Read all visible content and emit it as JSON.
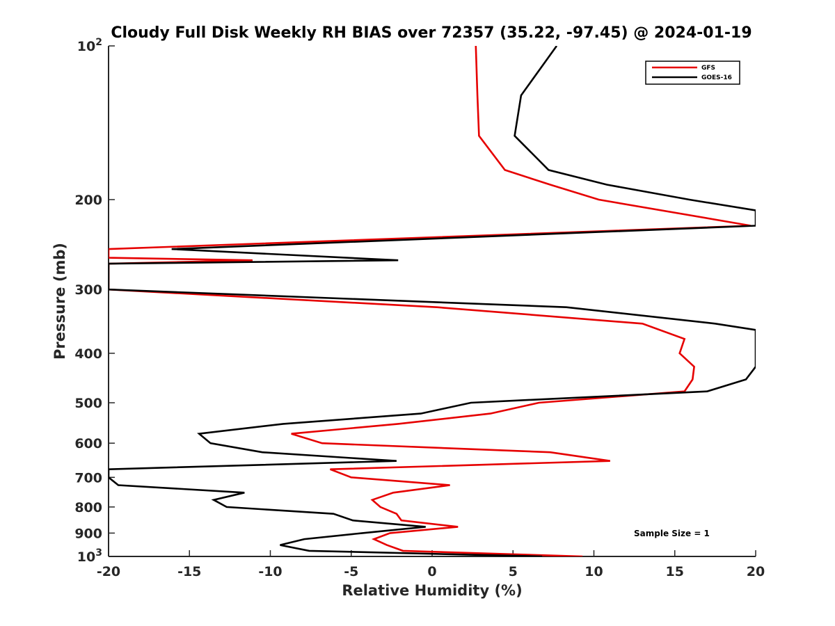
{
  "chart_data": {
    "type": "line",
    "title": "Cloudy Full Disk Weekly RH BIAS over 72357 (35.22, -97.45) @ 2024-01-19",
    "xlabel": "Relative Humidity (%)",
    "ylabel": "Pressure (mb)",
    "xlim": [
      -20,
      20
    ],
    "ylim": [
      100,
      1000
    ],
    "y_scale": "log",
    "y_reversed": true,
    "grid": false,
    "legend_position": "top-right",
    "x_ticks": [
      "-20",
      "-15",
      "-10",
      "-5",
      "0",
      "5",
      "10",
      "15",
      "20"
    ],
    "y_ticks": [
      {
        "value": 100,
        "base": "10",
        "exp": "2"
      },
      {
        "value": 200,
        "label": "200"
      },
      {
        "value": 300,
        "label": "300"
      },
      {
        "value": 400,
        "label": "400"
      },
      {
        "value": 500,
        "label": "500"
      },
      {
        "value": 600,
        "label": "600"
      },
      {
        "value": 700,
        "label": "700"
      },
      {
        "value": 800,
        "label": "800"
      },
      {
        "value": 900,
        "label": "900"
      },
      {
        "value": 1000,
        "base": "10",
        "exp": "3"
      }
    ],
    "series": [
      {
        "name": "GFS",
        "color": "#e60000",
        "points": [
          [
            2.7,
            100
          ],
          [
            2.8,
            125
          ],
          [
            2.9,
            150
          ],
          [
            4.5,
            175
          ],
          [
            7.3,
            187
          ],
          [
            10.3,
            200
          ],
          [
            19.7,
            225
          ],
          [
            -20,
            250
          ],
          [
            -20,
            260
          ],
          [
            -11.1,
            263
          ],
          [
            -20,
            267
          ],
          [
            -20,
            300
          ],
          [
            0.3,
            325
          ],
          [
            13.0,
            350
          ],
          [
            15.6,
            375
          ],
          [
            15.3,
            400
          ],
          [
            16.2,
            425
          ],
          [
            16.1,
            450
          ],
          [
            15.6,
            475
          ],
          [
            6.6,
            500
          ],
          [
            3.6,
            525
          ],
          [
            -2.1,
            550
          ],
          [
            -8.7,
            575
          ],
          [
            -6.8,
            600
          ],
          [
            7.3,
            625
          ],
          [
            11.0,
            650
          ],
          [
            -6.3,
            675
          ],
          [
            -5.0,
            700
          ],
          [
            1.1,
            725
          ],
          [
            -2.4,
            750
          ],
          [
            -3.7,
            775
          ],
          [
            -3.2,
            800
          ],
          [
            -2.2,
            825
          ],
          [
            -1.9,
            850
          ],
          [
            1.6,
            875
          ],
          [
            -2.6,
            900
          ],
          [
            -3.6,
            925
          ],
          [
            -2.8,
            950
          ],
          [
            -1.8,
            975
          ],
          [
            9.3,
            1000
          ]
        ]
      },
      {
        "name": "GOES-16",
        "color": "#000000",
        "points": [
          [
            7.7,
            100
          ],
          [
            5.5,
            125
          ],
          [
            5.1,
            150
          ],
          [
            7.2,
            175
          ],
          [
            10.8,
            187
          ],
          [
            15.9,
            200
          ],
          [
            20,
            210
          ],
          [
            20,
            225
          ],
          [
            -16.1,
            250
          ],
          [
            -2.1,
            263
          ],
          [
            -20,
            267
          ],
          [
            -20,
            300
          ],
          [
            8.3,
            325
          ],
          [
            17.5,
            350
          ],
          [
            20,
            360
          ],
          [
            20,
            425
          ],
          [
            19.4,
            450
          ],
          [
            17.0,
            475
          ],
          [
            2.4,
            500
          ],
          [
            -0.7,
            525
          ],
          [
            -9.2,
            550
          ],
          [
            -14.4,
            575
          ],
          [
            -13.7,
            600
          ],
          [
            -10.5,
            625
          ],
          [
            -2.2,
            650
          ],
          [
            -20,
            675
          ],
          [
            -20,
            700
          ],
          [
            -19.4,
            725
          ],
          [
            -11.6,
            750
          ],
          [
            -13.5,
            775
          ],
          [
            -12.7,
            800
          ],
          [
            -6.1,
            825
          ],
          [
            -4.9,
            850
          ],
          [
            -0.4,
            875
          ],
          [
            -4.3,
            900
          ],
          [
            -7.9,
            925
          ],
          [
            -9.4,
            950
          ],
          [
            -7.6,
            975
          ],
          [
            6.8,
            1000
          ]
        ]
      }
    ],
    "annotation": "Sample Size = 1"
  },
  "colors": {
    "axis": "#262626",
    "background": "#ffffff"
  }
}
